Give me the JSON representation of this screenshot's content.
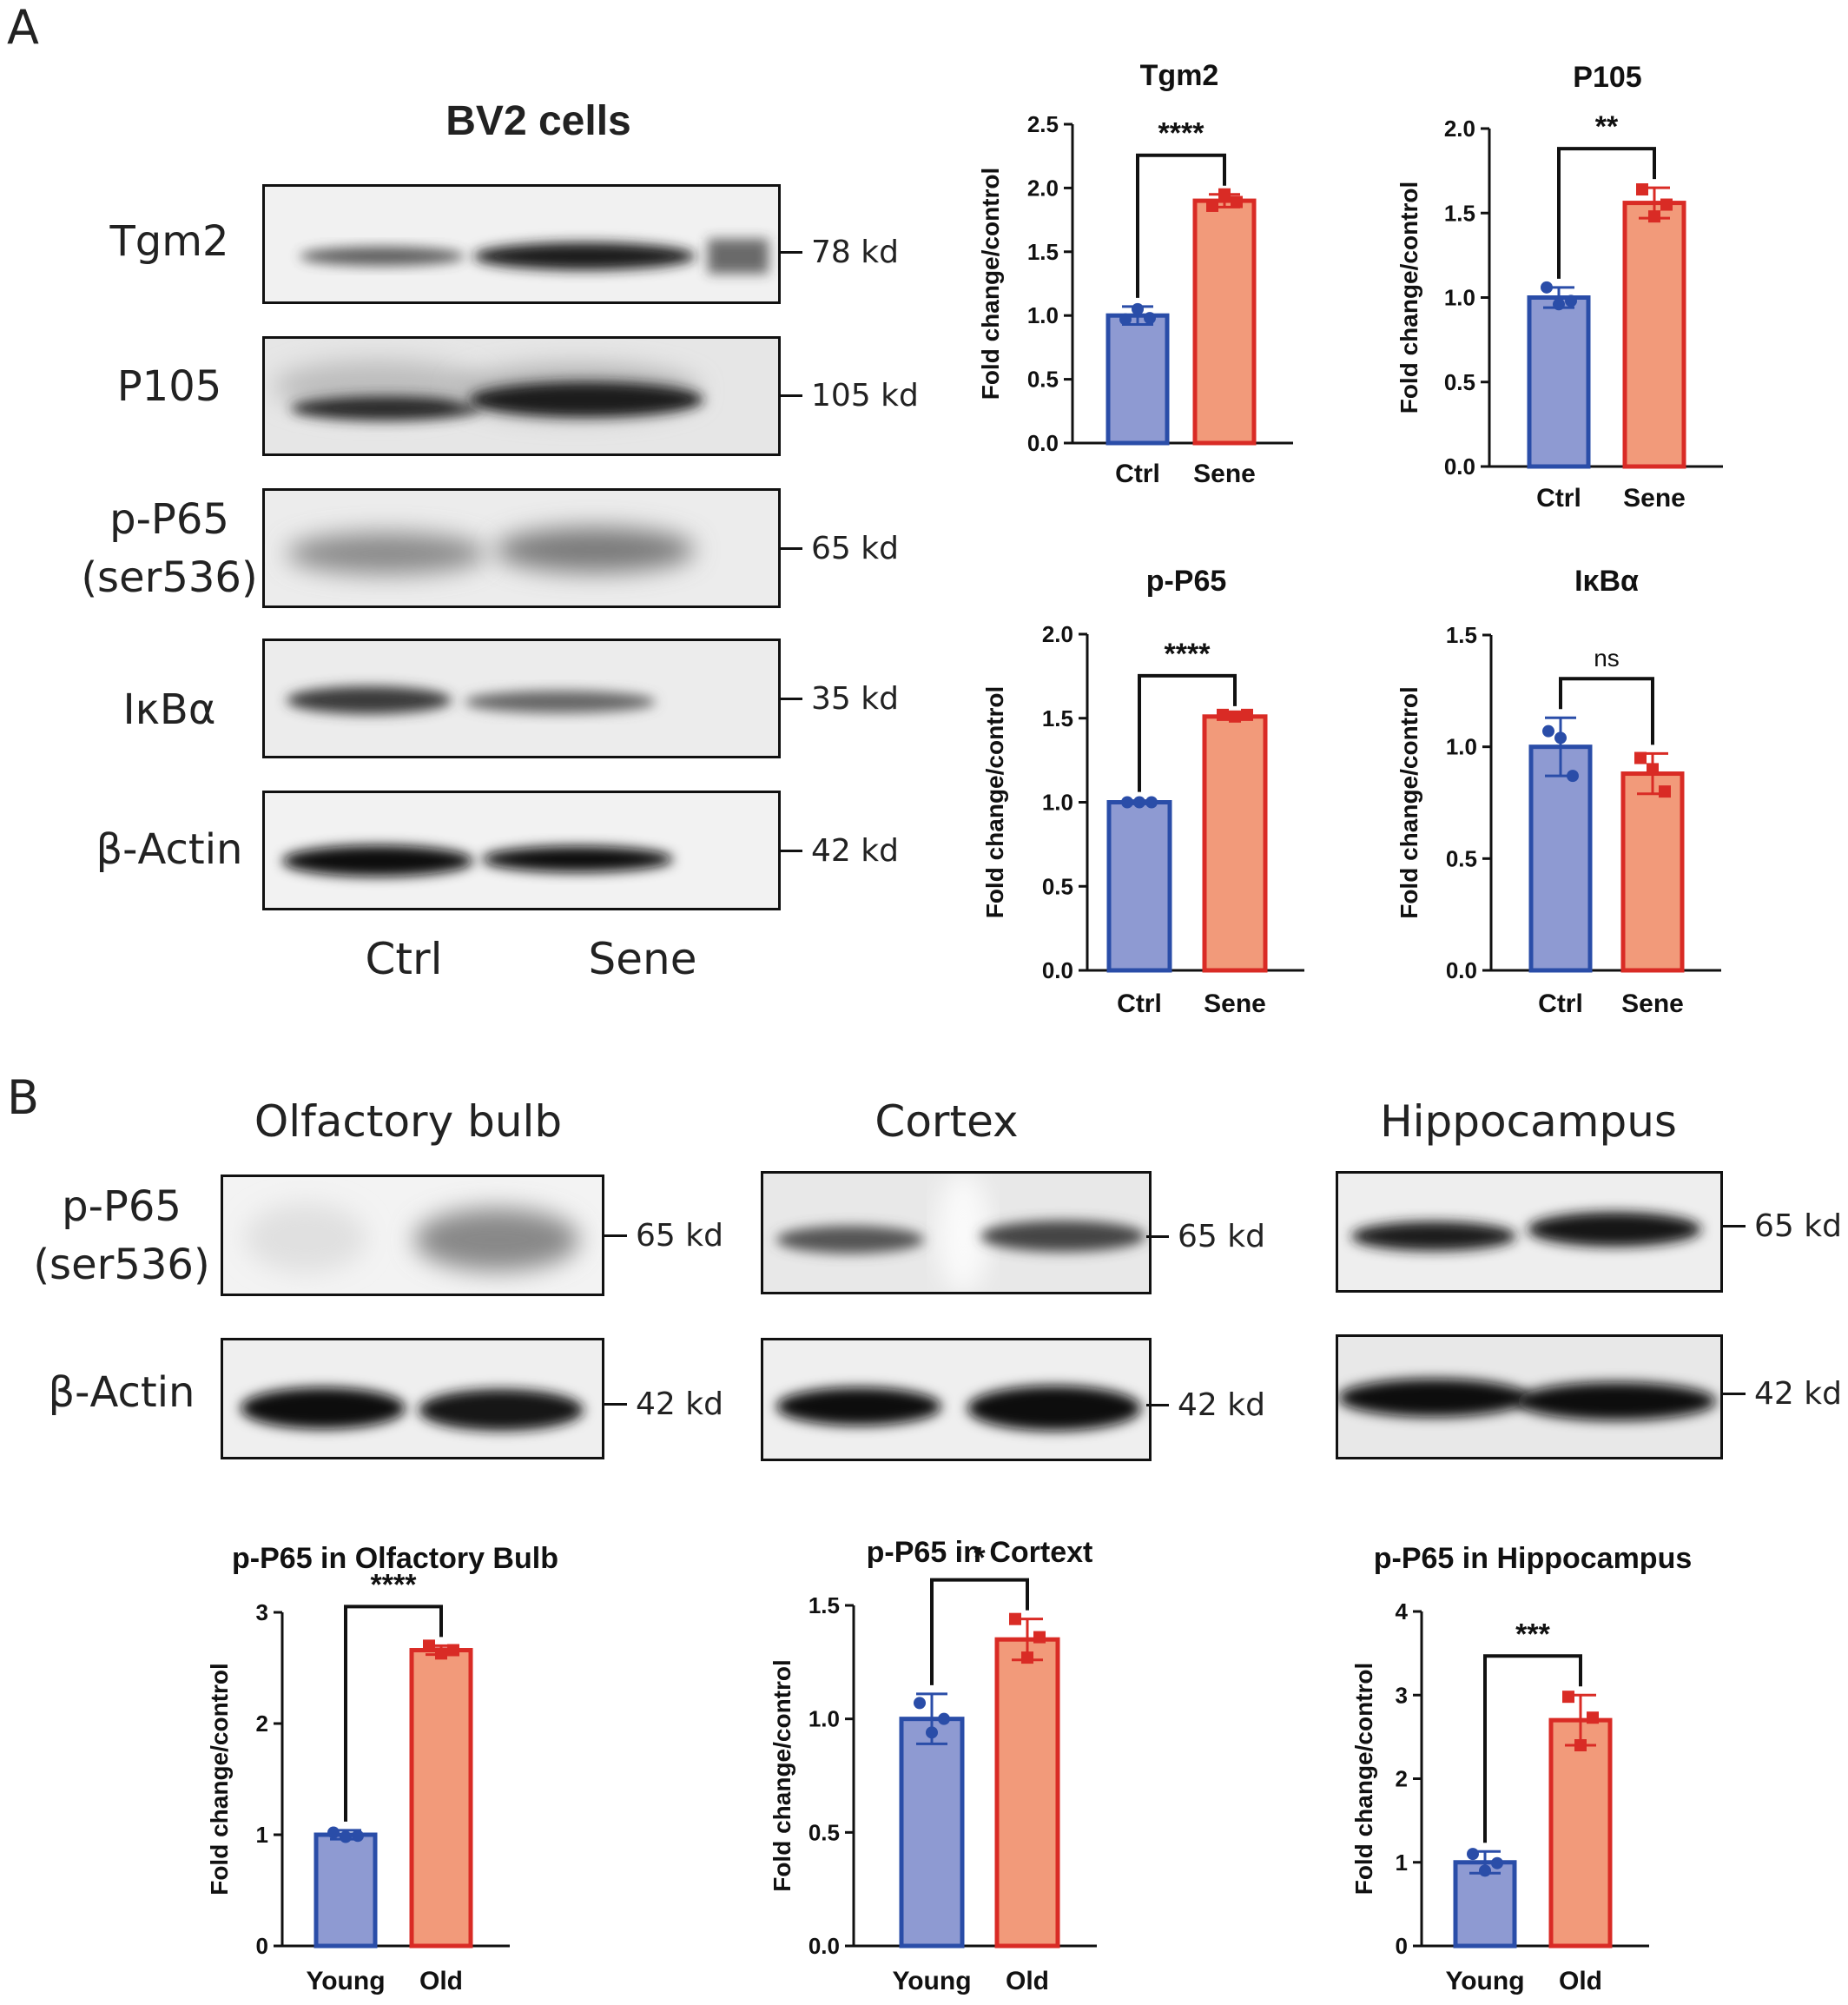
{
  "panel_a": {
    "letter": "A",
    "blot_title": "BV2 cells",
    "rows": [
      {
        "label": "Tgm2",
        "kd": "78 kd"
      },
      {
        "label": "P105",
        "kd": "105 kd"
      },
      {
        "label": "p-P65\n(ser536)",
        "kd": "65 kd"
      },
      {
        "label": "IκBα",
        "kd": "35 kd"
      },
      {
        "label": "β-Actin",
        "kd": "42 kd"
      }
    ],
    "lanes": [
      "Ctrl",
      "Sene"
    ]
  },
  "panel_b": {
    "letter": "B",
    "row_labels": [
      "p-P65\n(ser536)",
      "β-Actin"
    ],
    "regions": [
      {
        "title": "Olfactory bulb",
        "kd_top": "65 kd",
        "kd_bottom": "42 kd"
      },
      {
        "title": "Cortex",
        "kd_top": "65 kd",
        "kd_bottom": "42 kd"
      },
      {
        "title": "Hippocampus",
        "kd_top": "65 kd",
        "kd_bottom": "42 kd"
      }
    ]
  },
  "colors": {
    "ctrl_fill": "#8e9ad2",
    "ctrl_stroke": "#2a4da8",
    "sene_fill": "#f29a7a",
    "sene_stroke": "#d92b25"
  },
  "chart_data": [
    {
      "type": "bar",
      "title": "Tgm2",
      "ylabel": "Fold change/control",
      "categories": [
        "Ctrl",
        "Sene"
      ],
      "values": [
        1.0,
        1.9
      ],
      "errors": [
        0.07,
        0.05
      ],
      "points": [
        [
          0.97,
          1.05,
          0.98
        ],
        [
          1.86,
          1.95,
          1.89
        ]
      ],
      "ylim": [
        0,
        2.5
      ],
      "yticks": [
        0,
        0.5,
        1.0,
        1.5,
        2.0,
        2.5
      ],
      "significance": "****"
    },
    {
      "type": "bar",
      "title": "P105",
      "ylabel": "Fold change/control",
      "categories": [
        "Ctrl",
        "Sene"
      ],
      "values": [
        1.0,
        1.56
      ],
      "errors": [
        0.06,
        0.09
      ],
      "points": [
        [
          1.06,
          0.96,
          0.98
        ],
        [
          1.64,
          1.48,
          1.55
        ]
      ],
      "ylim": [
        0,
        2.0
      ],
      "yticks": [
        0,
        0.5,
        1.0,
        1.5,
        2.0
      ],
      "significance": "**"
    },
    {
      "type": "bar",
      "title": "p-P65",
      "ylabel": "Fold change/control",
      "categories": [
        "Ctrl",
        "Sene"
      ],
      "values": [
        1.0,
        1.51
      ],
      "errors": [
        0.01,
        0.01
      ],
      "points": [
        [
          1.0,
          1.0,
          1.0
        ],
        [
          1.52,
          1.51,
          1.52
        ]
      ],
      "ylim": [
        0,
        2.0
      ],
      "yticks": [
        0,
        0.5,
        1.0,
        1.5,
        2.0
      ],
      "significance": "****"
    },
    {
      "type": "bar",
      "title": "IκBα",
      "ylabel": "Fold change/control",
      "categories": [
        "Ctrl",
        "Sene"
      ],
      "values": [
        1.0,
        0.88
      ],
      "errors": [
        0.13,
        0.09
      ],
      "points": [
        [
          1.07,
          1.04,
          0.87
        ],
        [
          0.95,
          0.9,
          0.8
        ]
      ],
      "ylim": [
        0,
        1.5
      ],
      "yticks": [
        0,
        0.5,
        1.0,
        1.5
      ],
      "significance": "ns"
    },
    {
      "type": "bar",
      "title": "p-P65 in Olfactory Bulb",
      "ylabel": "Fold change/control",
      "categories": [
        "Young",
        "Old"
      ],
      "values": [
        1.0,
        2.66
      ],
      "errors": [
        0.04,
        0.04
      ],
      "points": [
        [
          1.02,
          0.98,
          0.99
        ],
        [
          2.7,
          2.63,
          2.66
        ]
      ],
      "ylim": [
        0,
        3
      ],
      "yticks": [
        0,
        1,
        2,
        3
      ],
      "significance": "****"
    },
    {
      "type": "bar",
      "title": "p-P65 in Cortext",
      "ylabel": "Fold change/control",
      "categories": [
        "Young",
        "Old"
      ],
      "values": [
        1.0,
        1.35
      ],
      "errors": [
        0.11,
        0.09
      ],
      "points": [
        [
          1.07,
          0.94,
          1.0
        ],
        [
          1.44,
          1.27,
          1.36
        ]
      ],
      "ylim": [
        0,
        1.5
      ],
      "yticks": [
        0.0,
        0.5,
        1.0,
        1.5
      ],
      "significance": "*"
    },
    {
      "type": "bar",
      "title": "p-P65 in Hippocampus",
      "ylabel": "Fold change/control",
      "categories": [
        "Young",
        "Old"
      ],
      "values": [
        1.0,
        2.7
      ],
      "errors": [
        0.13,
        0.3
      ],
      "points": [
        [
          1.1,
          0.9,
          0.99
        ],
        [
          2.98,
          2.4,
          2.73
        ]
      ],
      "ylim": [
        0,
        4
      ],
      "yticks": [
        0,
        1,
        2,
        3,
        4
      ],
      "significance": "***"
    }
  ]
}
